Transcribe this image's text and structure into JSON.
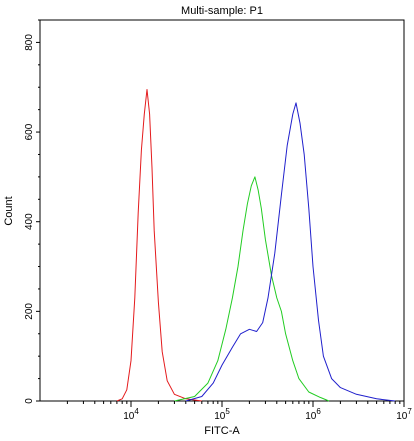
{
  "chart_data": {
    "type": "line",
    "title": "Multi-sample: P1",
    "xlabel": "FITC-A",
    "ylabel": "Count",
    "x_scale": "log",
    "xlim": [
      1000,
      10000000
    ],
    "ylim": [
      0,
      850
    ],
    "x_ticks": [
      {
        "value": 10000,
        "base": "10",
        "exp": "4"
      },
      {
        "value": 100000,
        "base": "10",
        "exp": "5"
      },
      {
        "value": 1000000,
        "base": "10",
        "exp": "6"
      },
      {
        "value": 10000000,
        "base": "10",
        "exp": "7"
      }
    ],
    "y_ticks": [
      0,
      200,
      400,
      600,
      800
    ],
    "grid": false,
    "series": [
      {
        "color": "#e41a1c",
        "points": [
          [
            7000,
            0
          ],
          [
            8000,
            5
          ],
          [
            9000,
            25
          ],
          [
            10000,
            90
          ],
          [
            11000,
            230
          ],
          [
            12000,
            420
          ],
          [
            13000,
            560
          ],
          [
            14000,
            640
          ],
          [
            15000,
            695
          ],
          [
            16000,
            640
          ],
          [
            17000,
            520
          ],
          [
            18000,
            380
          ],
          [
            20000,
            220
          ],
          [
            22000,
            110
          ],
          [
            25000,
            45
          ],
          [
            30000,
            15
          ],
          [
            40000,
            5
          ],
          [
            60000,
            0
          ]
        ]
      },
      {
        "color": "#22cc22",
        "points": [
          [
            30000,
            0
          ],
          [
            50000,
            10
          ],
          [
            70000,
            40
          ],
          [
            90000,
            90
          ],
          [
            110000,
            160
          ],
          [
            130000,
            230
          ],
          [
            150000,
            300
          ],
          [
            170000,
            380
          ],
          [
            190000,
            440
          ],
          [
            210000,
            480
          ],
          [
            230000,
            500
          ],
          [
            250000,
            470
          ],
          [
            270000,
            430
          ],
          [
            300000,
            360
          ],
          [
            350000,
            280
          ],
          [
            400000,
            230
          ],
          [
            450000,
            200
          ],
          [
            500000,
            150
          ],
          [
            600000,
            90
          ],
          [
            700000,
            50
          ],
          [
            900000,
            20
          ],
          [
            1200000,
            8
          ],
          [
            1500000,
            0
          ]
        ]
      },
      {
        "color": "#2020cc",
        "points": [
          [
            40000,
            0
          ],
          [
            60000,
            10
          ],
          [
            80000,
            40
          ],
          [
            100000,
            80
          ],
          [
            130000,
            120
          ],
          [
            160000,
            150
          ],
          [
            200000,
            160
          ],
          [
            240000,
            155
          ],
          [
            280000,
            175
          ],
          [
            320000,
            230
          ],
          [
            380000,
            330
          ],
          [
            450000,
            460
          ],
          [
            520000,
            570
          ],
          [
            600000,
            640
          ],
          [
            650000,
            665
          ],
          [
            720000,
            620
          ],
          [
            800000,
            550
          ],
          [
            900000,
            430
          ],
          [
            1000000,
            300
          ],
          [
            1150000,
            180
          ],
          [
            1300000,
            100
          ],
          [
            1600000,
            50
          ],
          [
            2000000,
            30
          ],
          [
            3000000,
            15
          ],
          [
            5000000,
            5
          ],
          [
            8000000,
            0
          ]
        ]
      }
    ]
  }
}
